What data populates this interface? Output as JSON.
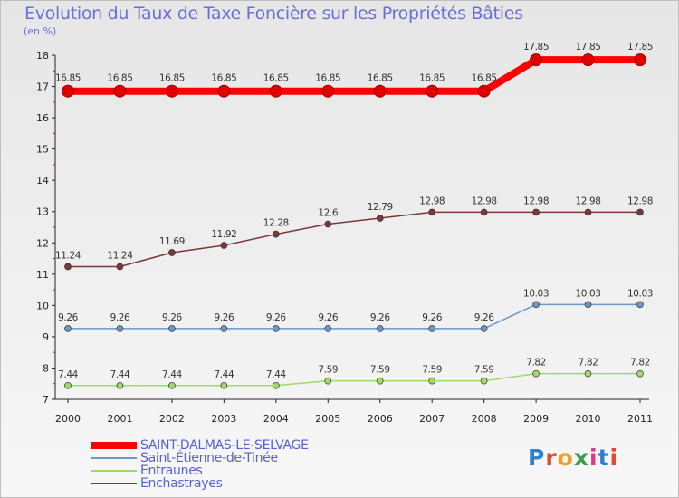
{
  "title": "Evolution du Taux de Taxe Foncière sur les Propriétés Bâties",
  "unit": "(en %)",
  "logo_text": "Proxiti",
  "chart_data": {
    "type": "line",
    "title": "Evolution du Taux de Taxe Foncière sur les Propriétés Bâties",
    "ylabel": "(en %)",
    "xlabel": "",
    "ylim": [
      7,
      18
    ],
    "yticks": [
      7,
      8,
      9,
      10,
      11,
      12,
      13,
      14,
      15,
      16,
      17,
      18
    ],
    "x": [
      "2000",
      "2001",
      "2002",
      "2003",
      "2004",
      "2005",
      "2006",
      "2007",
      "2008",
      "2009",
      "2010",
      "2011"
    ],
    "grid": false,
    "legend_position": "bottom-left",
    "series": [
      {
        "name": "SAINT-DALMAS-LE-SELVAGE",
        "color": "#ff0000",
        "values": [
          16.85,
          16.85,
          16.85,
          16.85,
          16.85,
          16.85,
          16.85,
          16.85,
          16.85,
          17.85,
          17.85,
          17.85
        ],
        "labels": [
          "16.85",
          "16.85",
          "16.85",
          "16.85",
          "16.85",
          "16.85",
          "16.85",
          "16.85",
          "16.85",
          "17.85",
          "17.85",
          "17.85"
        ]
      },
      {
        "name": "Saint-Étienne-de-Tinée",
        "color": "#6c98c6",
        "values": [
          9.26,
          9.26,
          9.26,
          9.26,
          9.26,
          9.26,
          9.26,
          9.26,
          9.26,
          10.03,
          10.03,
          10.03
        ],
        "labels": [
          "9.26",
          "9.26",
          "9.26",
          "9.26",
          "9.26",
          "9.26",
          "9.26",
          "9.26",
          "9.26",
          "10.03",
          "10.03",
          "10.03"
        ]
      },
      {
        "name": "Entraunes",
        "color": "#9fd96a",
        "values": [
          7.44,
          7.44,
          7.44,
          7.44,
          7.44,
          7.59,
          7.59,
          7.59,
          7.59,
          7.82,
          7.82,
          7.82
        ],
        "labels": [
          "7.44",
          "7.44",
          "7.44",
          "7.44",
          "7.44",
          "7.59",
          "7.59",
          "7.59",
          "7.59",
          "7.82",
          "7.82",
          "7.82"
        ]
      },
      {
        "name": "Enchastrayes",
        "color": "#7a3838",
        "values": [
          11.24,
          11.24,
          11.69,
          11.92,
          12.28,
          12.6,
          12.79,
          12.98,
          12.98,
          12.98,
          12.98,
          12.98
        ],
        "labels": [
          "11.24",
          "11.24",
          "11.69",
          "11.92",
          "12.28",
          "12.6",
          "12.79",
          "12.98",
          "12.98",
          "12.98",
          "12.98",
          "12.98"
        ]
      }
    ]
  }
}
